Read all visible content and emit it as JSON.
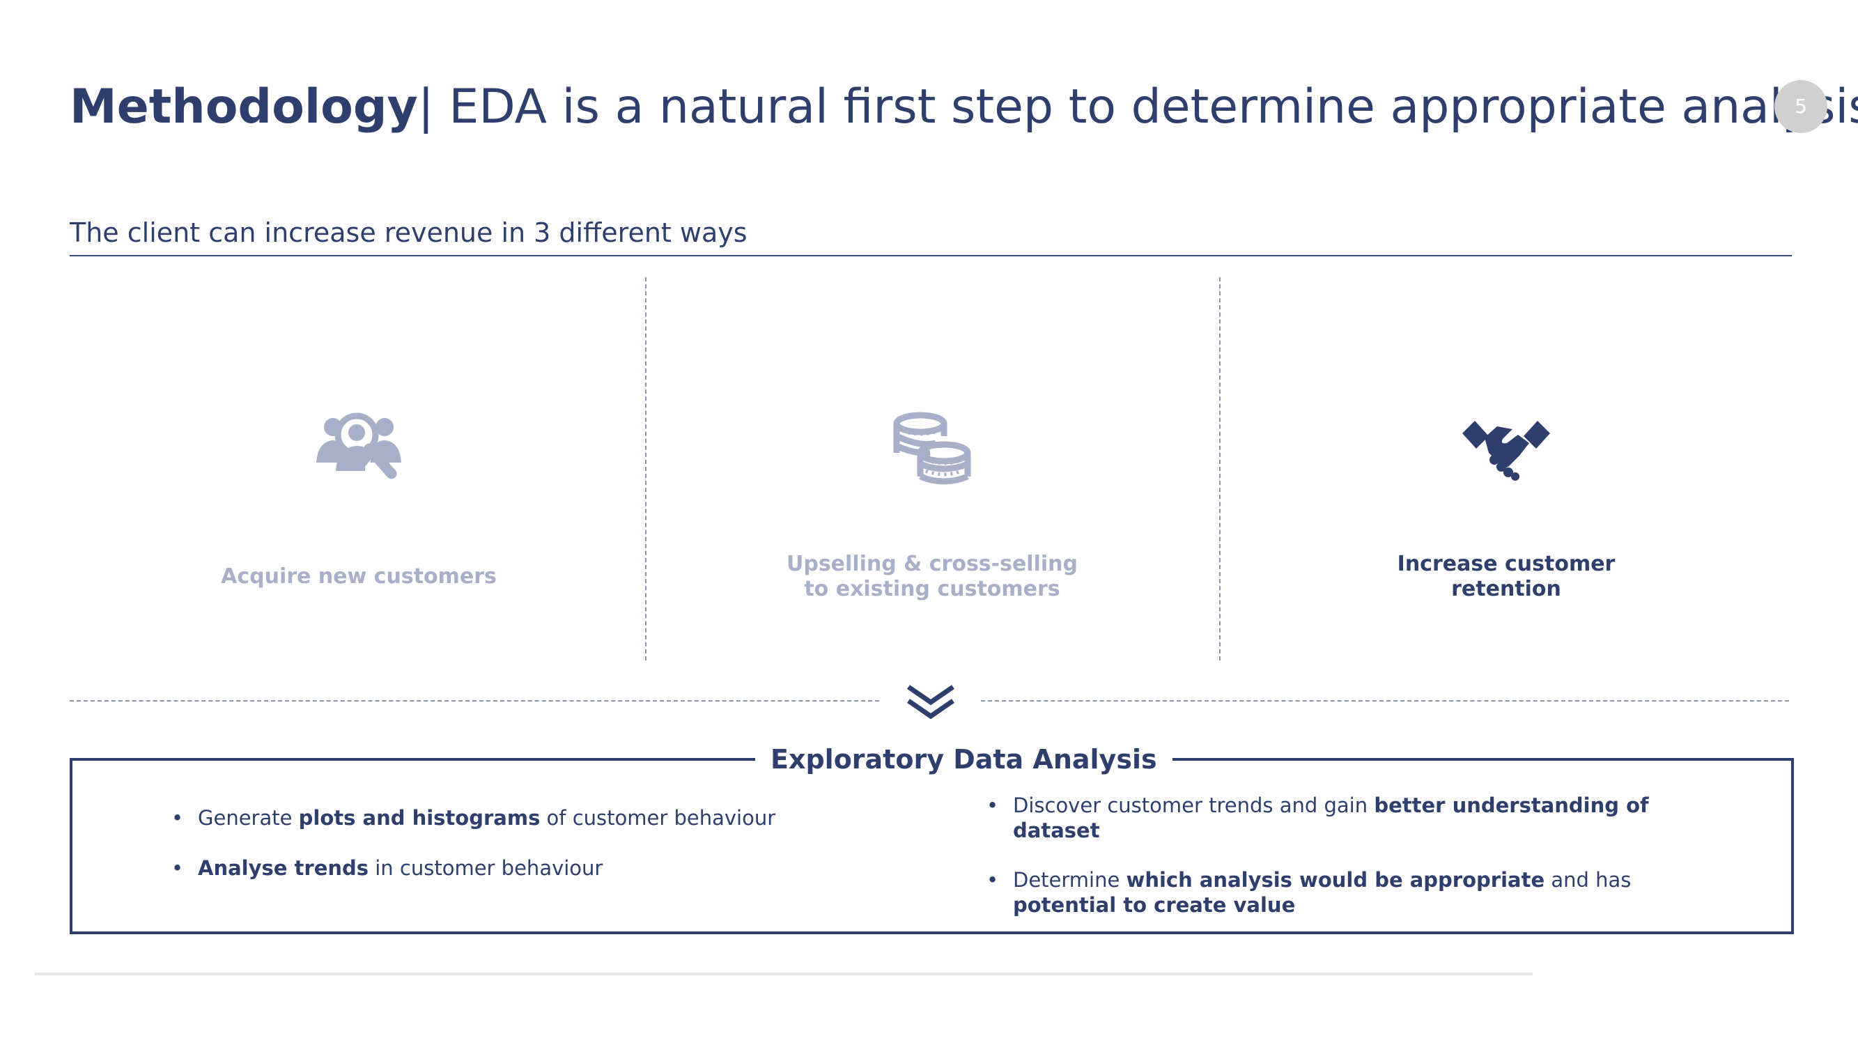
{
  "header": {
    "title_bold": "Methodology",
    "title_rest": "| EDA is a natural first step to determine appropriate analysis",
    "page_number": "5"
  },
  "subtitle": "The client can increase revenue in 3 different ways",
  "ways": [
    {
      "icon": "customer-search-icon",
      "label": "Acquire new customers",
      "state": "muted"
    },
    {
      "icon": "coins-icon",
      "label": "Upselling & cross-selling to existing customers",
      "state": "muted"
    },
    {
      "icon": "handshake-icon",
      "label": "Increase customer retention",
      "state": "active"
    }
  ],
  "eda": {
    "title": "Exploratory Data Analysis",
    "left_bullets": [
      {
        "pre": "Generate ",
        "bold": "plots and histograms",
        "post": " of customer behaviour"
      },
      {
        "pre": "",
        "bold": "Analyse trends",
        "post": " in customer behaviour"
      }
    ],
    "right_bullets": [
      {
        "pre": "Discover customer trends and gain ",
        "bold": "better understanding of dataset",
        "post": "",
        "bold2": "",
        "post2": ""
      },
      {
        "pre": "Determine ",
        "bold": "which analysis would be appropriate",
        "post": " and has ",
        "bold2": "potential to create value",
        "post2": ""
      }
    ]
  },
  "colors": {
    "navy": "#2e3f6e",
    "muted": "#a8afc8",
    "page_circle": "#d0d0d0"
  }
}
